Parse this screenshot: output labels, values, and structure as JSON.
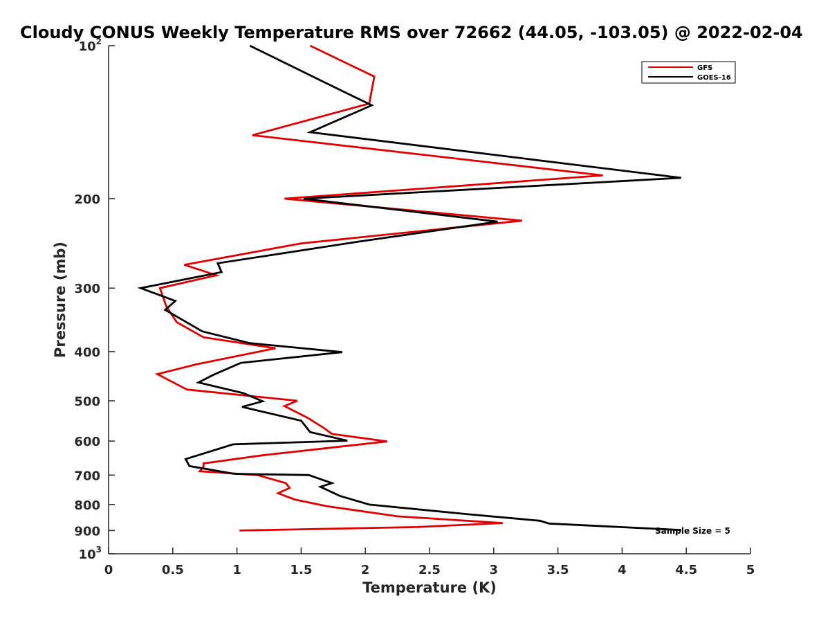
{
  "chart_data": {
    "type": "line",
    "title": "Cloudy CONUS Weekly Temperature RMS over 72662 (44.05, -103.05) @ 2022-02-04",
    "xlabel": "Temperature (K)",
    "ylabel": "Pressure (mb)",
    "xlim": [
      0,
      5
    ],
    "ylim": [
      100,
      1000
    ],
    "yscale": "log",
    "y_reversed": true,
    "grid": false,
    "legend_position": "top-right",
    "x_ticks": [
      "0",
      "0.5",
      "1",
      "1.5",
      "2",
      "2.5",
      "3",
      "3.5",
      "4",
      "4.5",
      "5"
    ],
    "y_ticks": [
      {
        "value": 100,
        "base": "10",
        "exp": "2"
      },
      {
        "value": 200,
        "label": "200"
      },
      {
        "value": 300,
        "label": "300"
      },
      {
        "value": 400,
        "label": "400"
      },
      {
        "value": 500,
        "label": "500"
      },
      {
        "value": 600,
        "label": "600"
      },
      {
        "value": 700,
        "label": "700"
      },
      {
        "value": 800,
        "label": "800"
      },
      {
        "value": 900,
        "label": "900"
      },
      {
        "value": 1000,
        "base": "10",
        "exp": "3"
      }
    ],
    "annotation": "Sample Size = 5",
    "series": [
      {
        "name": "GFS",
        "color": "#e00000",
        "points": [
          [
            1.57,
            100
          ],
          [
            2.07,
            115
          ],
          [
            2.03,
            130
          ],
          [
            1.12,
            150
          ],
          [
            3.85,
            180
          ],
          [
            1.37,
            200
          ],
          [
            3.22,
            221
          ],
          [
            1.5,
            245
          ],
          [
            0.59,
            270
          ],
          [
            0.84,
            283
          ],
          [
            0.4,
            300
          ],
          [
            0.45,
            326
          ],
          [
            0.53,
            350
          ],
          [
            0.74,
            375
          ],
          [
            1.3,
            394
          ],
          [
            0.68,
            424
          ],
          [
            0.38,
            443
          ],
          [
            0.61,
            475
          ],
          [
            1.47,
            500
          ],
          [
            1.37,
            512
          ],
          [
            1.55,
            540
          ],
          [
            1.68,
            566
          ],
          [
            1.74,
            581
          ],
          [
            2.17,
            601
          ],
          [
            1.2,
            640
          ],
          [
            0.74,
            664
          ],
          [
            0.74,
            674
          ],
          [
            0.71,
            688
          ],
          [
            1.16,
            700
          ],
          [
            1.38,
            726
          ],
          [
            1.41,
            742
          ],
          [
            1.32,
            760
          ],
          [
            1.45,
            782
          ],
          [
            1.7,
            806
          ],
          [
            2.25,
            844
          ],
          [
            3.07,
            870
          ],
          [
            2.4,
            886
          ],
          [
            1.02,
            900
          ]
        ]
      },
      {
        "name": "GOES-16",
        "color": "#000000",
        "points": [
          [
            1.1,
            100
          ],
          [
            1.68,
            118
          ],
          [
            2.05,
            131
          ],
          [
            1.57,
            148
          ],
          [
            4.46,
            182
          ],
          [
            1.52,
            200
          ],
          [
            3.03,
            222
          ],
          [
            1.95,
            243
          ],
          [
            0.85,
            268
          ],
          [
            0.88,
            279
          ],
          [
            0.25,
            300
          ],
          [
            0.52,
            318
          ],
          [
            0.44,
            331
          ],
          [
            0.73,
            365
          ],
          [
            1.1,
            385
          ],
          [
            1.82,
            401
          ],
          [
            1.03,
            421
          ],
          [
            0.82,
            444
          ],
          [
            0.7,
            460
          ],
          [
            1.05,
            483
          ],
          [
            1.2,
            501
          ],
          [
            1.04,
            514
          ],
          [
            1.5,
            547
          ],
          [
            1.57,
            576
          ],
          [
            1.86,
            599
          ],
          [
            0.97,
            609
          ],
          [
            0.6,
            651
          ],
          [
            0.63,
            672
          ],
          [
            0.98,
            696
          ],
          [
            1.56,
            700
          ],
          [
            1.74,
            726
          ],
          [
            1.65,
            738
          ],
          [
            1.8,
            769
          ],
          [
            2.03,
            800
          ],
          [
            2.8,
            836
          ],
          [
            3.36,
            861
          ],
          [
            3.43,
            872
          ],
          [
            4.46,
            898
          ]
        ]
      }
    ]
  }
}
